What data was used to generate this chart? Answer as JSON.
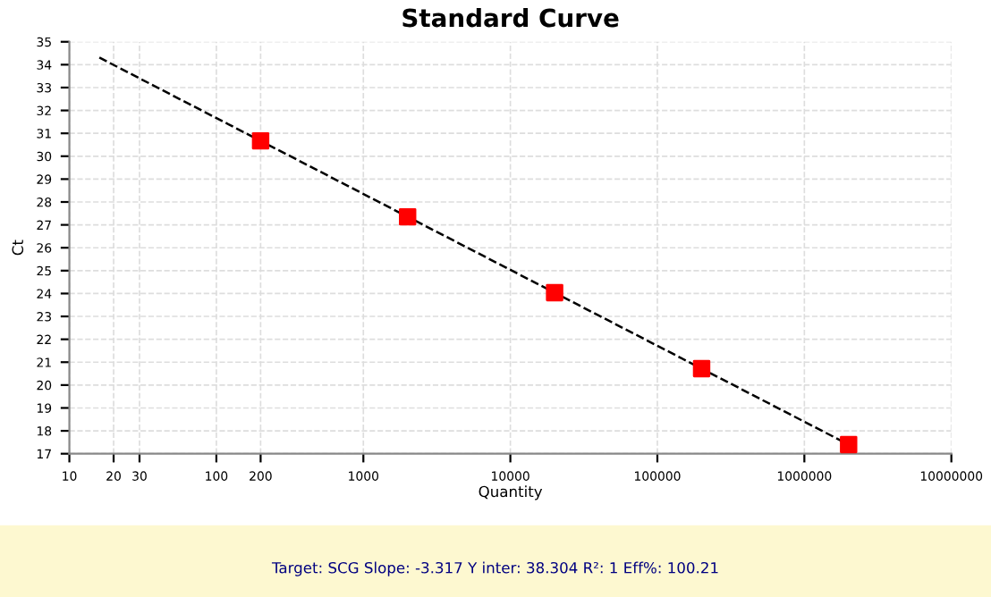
{
  "chart_data": {
    "type": "scatter",
    "title": "Standard Curve",
    "xlabel": "Quantity",
    "ylabel": "Ct",
    "log": "x",
    "xlim": [
      10,
      10000000
    ],
    "xticks": [
      10,
      20,
      30,
      100,
      200,
      1000,
      10000,
      100000,
      1000000,
      10000000
    ],
    "ylim": [
      17,
      35
    ],
    "yticks": [
      17,
      18,
      19,
      20,
      21,
      22,
      23,
      24,
      25,
      26,
      27,
      28,
      29,
      30,
      31,
      32,
      33,
      34,
      35
    ],
    "grid": true,
    "series": [
      {
        "type": "line",
        "color": "#000000",
        "line_style": "dashed",
        "marker": "none",
        "x": [
          16,
          2000000
        ],
        "values": [
          34.31,
          17.4
        ]
      },
      {
        "color": "#ff0000",
        "marker": "square",
        "x": [
          200,
          2000,
          20000,
          200000,
          2000000
        ],
        "values": [
          30.67,
          27.35,
          24.04,
          20.72,
          17.4
        ]
      }
    ],
    "annotations": [
      "Target: SCG Slope: -3.317 Y inter: 38.304 R²: 1 Eff%: 100.21"
    ]
  }
}
